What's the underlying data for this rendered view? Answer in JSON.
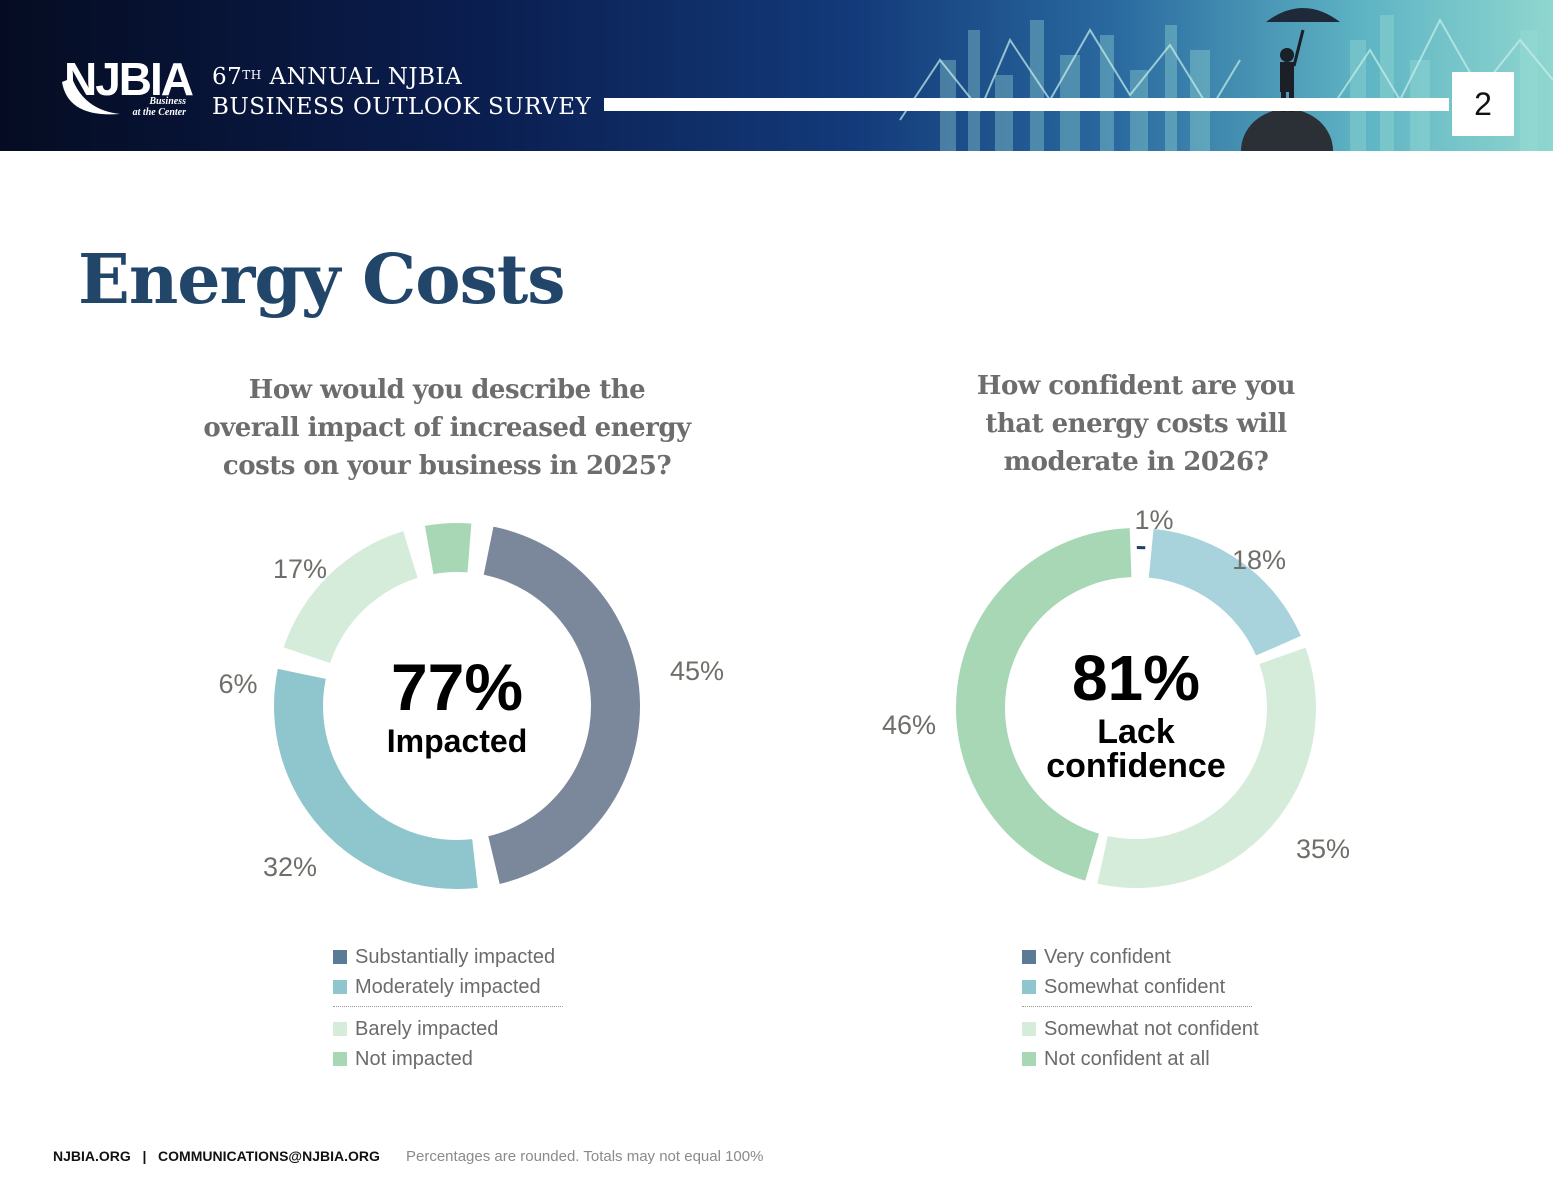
{
  "header": {
    "logo_text": "NJBIA",
    "logo_tagline_line1": "Business",
    "logo_tagline_line2": "at the Center",
    "survey_line1_prefix": "67",
    "survey_line1_sup": "TH",
    "survey_line1_rest": " ANNUAL NJBIA",
    "survey_line2": "BUSINESS OUTLOOK SURVEY",
    "page_number": "2"
  },
  "page_title": "Energy Costs",
  "footer": {
    "contact": "NJBIA.ORG   |   COMMUNICATIONS@NJBIA.ORG",
    "note": "Percentages are rounded. Totals may not equal 100%"
  },
  "chart_data": [
    {
      "type": "pie",
      "title": "How would you describe the overall impact of increased energy costs on your business in 2025?",
      "center_value": "77%",
      "center_label": "Impacted",
      "categories": [
        "Substantially impacted",
        "Moderately impacted",
        "Barely impacted",
        "Not impacted"
      ],
      "values": [
        45,
        32,
        17,
        6
      ],
      "labels": [
        "45%",
        "32%",
        "17%",
        "6%"
      ],
      "colors": [
        "#7b889b",
        "#8fc6cd",
        "#d4ecd9",
        "#a7d7b5"
      ],
      "legend_colors": [
        "#5a7a96",
        "#8fc6cd",
        "#d4ecd9",
        "#a7d7b5"
      ]
    },
    {
      "type": "pie",
      "title": "How confident are you that energy costs will moderate in 2026?",
      "center_value": "81%",
      "center_label_line1": "Lack",
      "center_label_line2": "confidence",
      "categories": [
        "Very confident",
        "Somewhat confident",
        "Somewhat not confident",
        "Not confident at all"
      ],
      "values": [
        1,
        18,
        35,
        46
      ],
      "labels": [
        "1%",
        "18%",
        "35%",
        "46%"
      ],
      "colors": [
        "#1f3f63",
        "#a9d3dc",
        "#d4ecd9",
        "#a7d7b5"
      ],
      "legend_colors": [
        "#5a7a96",
        "#8fc6cd",
        "#d4ecd9",
        "#a7d7b5"
      ]
    }
  ]
}
